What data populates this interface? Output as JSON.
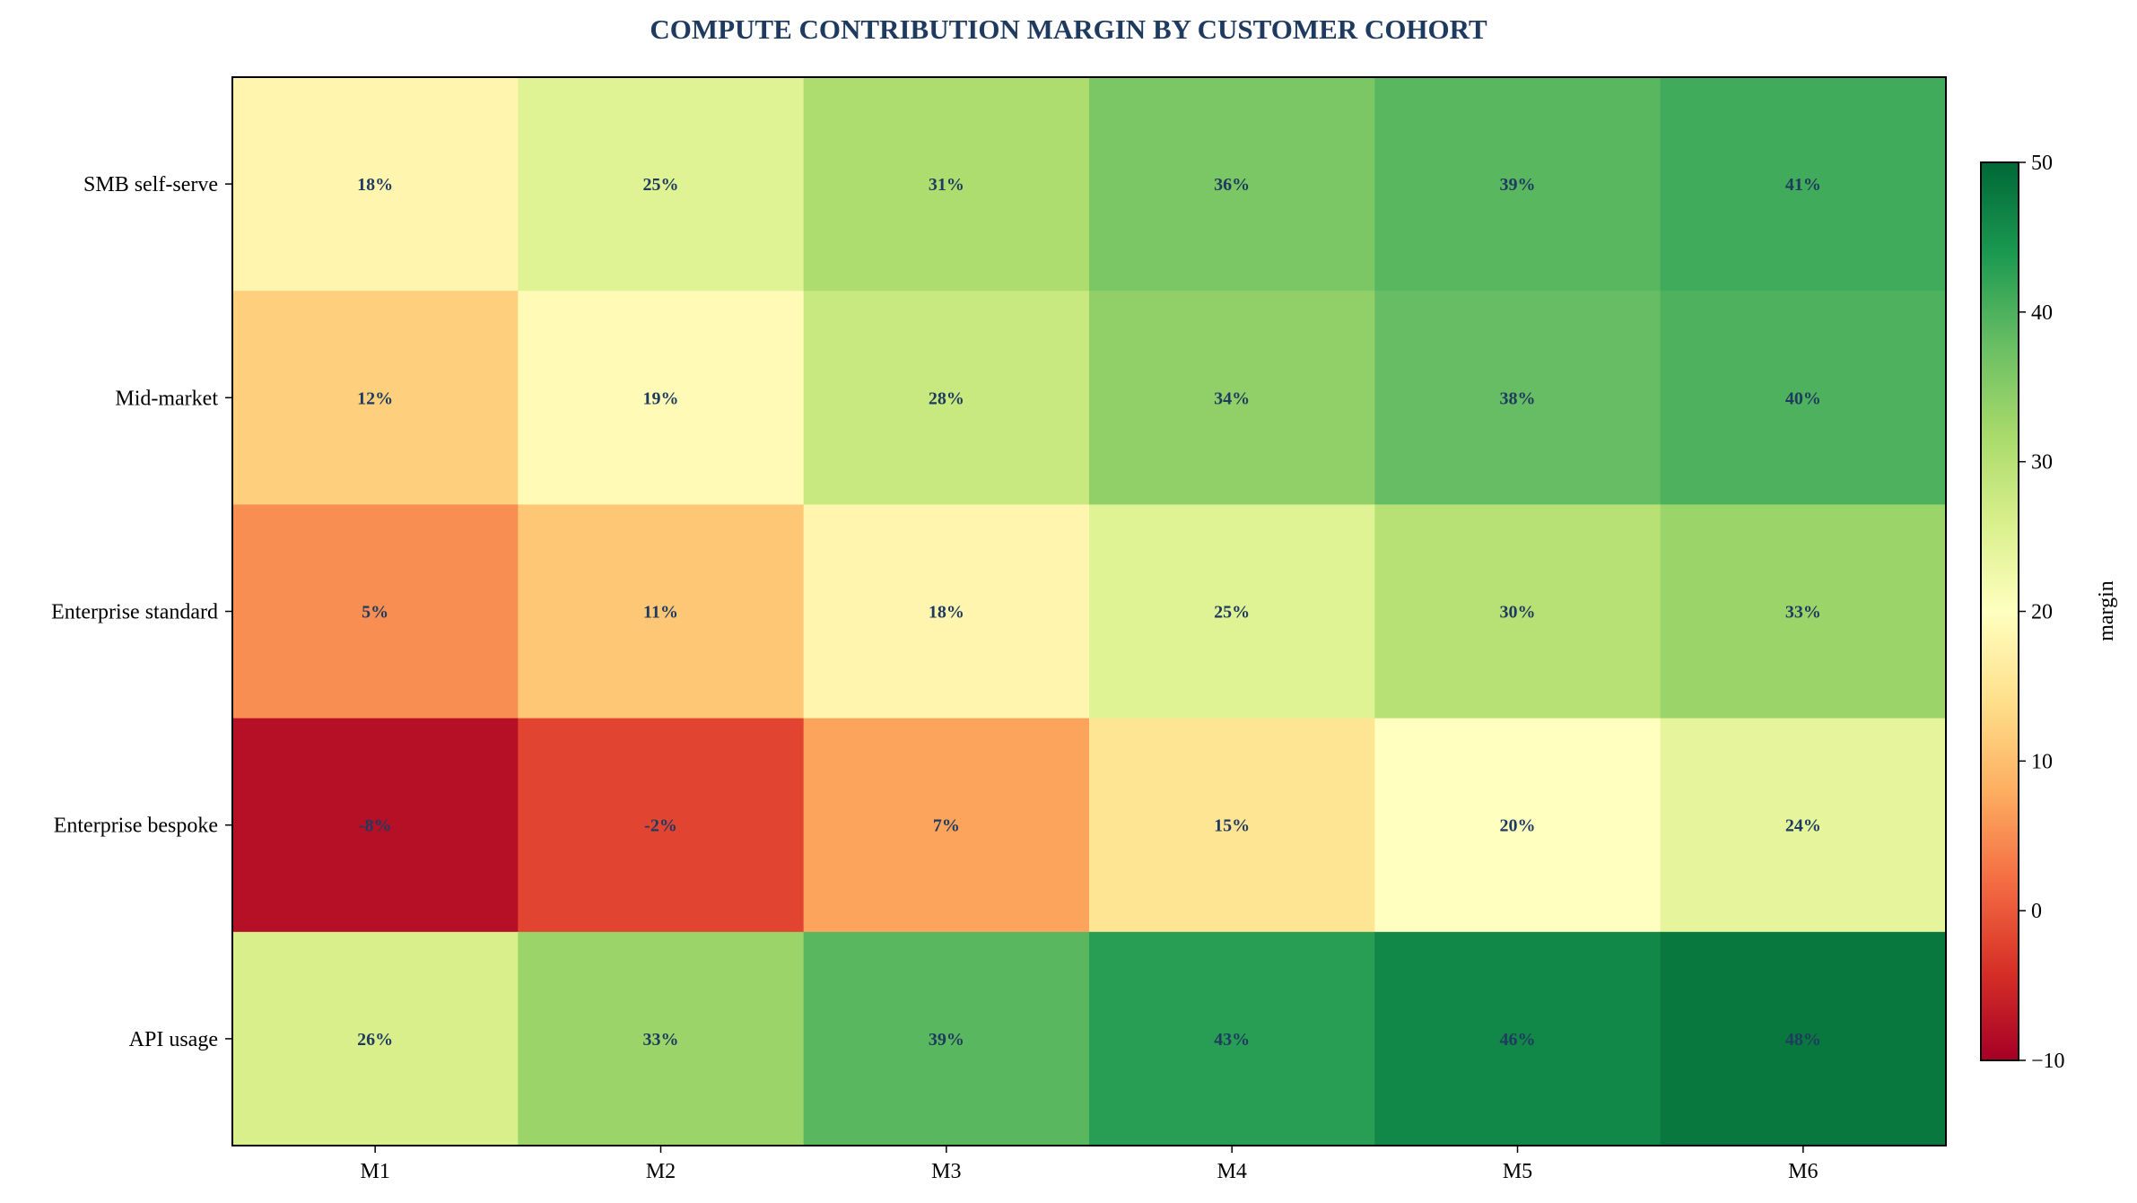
{
  "chart_data": {
    "type": "heatmap",
    "title": "COMPUTE CONTRIBUTION MARGIN BY CUSTOMER COHORT",
    "xlabel": "",
    "ylabel": "",
    "x_categories": [
      "M1",
      "M2",
      "M3",
      "M4",
      "M5",
      "M6"
    ],
    "y_categories": [
      "SMB self-serve",
      "Mid-market",
      "Enterprise standard",
      "Enterprise bespoke",
      "API usage"
    ],
    "values": [
      [
        18,
        25,
        31,
        36,
        39,
        41
      ],
      [
        12,
        19,
        28,
        34,
        38,
        40
      ],
      [
        5,
        11,
        18,
        25,
        30,
        33
      ],
      [
        -8,
        -2,
        7,
        15,
        20,
        24
      ],
      [
        26,
        33,
        39,
        43,
        46,
        48
      ]
    ],
    "cell_label_suffix": "%",
    "colorscale": "RdYlGn",
    "vmin": -10,
    "vmax": 50,
    "colorbar": {
      "label": "margin",
      "ticks": [
        -10,
        0,
        10,
        20,
        30,
        40,
        50
      ]
    },
    "colors": {
      "title": "#1f3a5f",
      "cell_text": "#1f3a5f",
      "axis": "#000000"
    }
  }
}
